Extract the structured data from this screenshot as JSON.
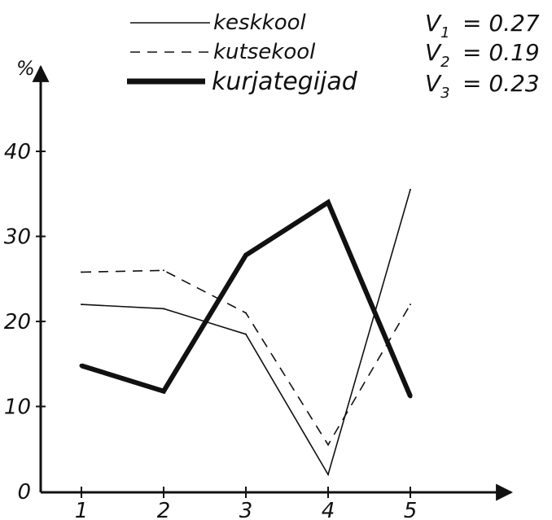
{
  "chart_data": {
    "type": "line",
    "x": [
      1,
      2,
      3,
      4,
      5
    ],
    "x_tick_labels": [
      "1",
      "2",
      "3",
      "4",
      "5"
    ],
    "y_tick_labels": [
      "0",
      "10",
      "20",
      "30",
      "40"
    ],
    "ylabel": "%",
    "ylim": [
      0,
      45
    ],
    "grid": false,
    "legend_position": "top",
    "series": [
      {
        "name": "keskkool",
        "style": "thin-solid",
        "values": [
          22,
          21.5,
          18.5,
          2,
          35.5
        ],
        "v_label": "V",
        "v_sub": "1",
        "v_value": "= 0.27"
      },
      {
        "name": "kutsekool",
        "style": "dashed",
        "values": [
          25.8,
          26,
          21,
          5.5,
          22
        ],
        "v_label": "V",
        "v_sub": "2",
        "v_value": "= 0.19"
      },
      {
        "name": "kurjategijad",
        "style": "thick-solid",
        "values": [
          14.8,
          11.8,
          27.8,
          34,
          11.2
        ],
        "v_label": "V",
        "v_sub": "3",
        "v_value": "= 0.23"
      }
    ],
    "colors": {
      "ink": "#111111",
      "background": "#ffffff"
    }
  }
}
